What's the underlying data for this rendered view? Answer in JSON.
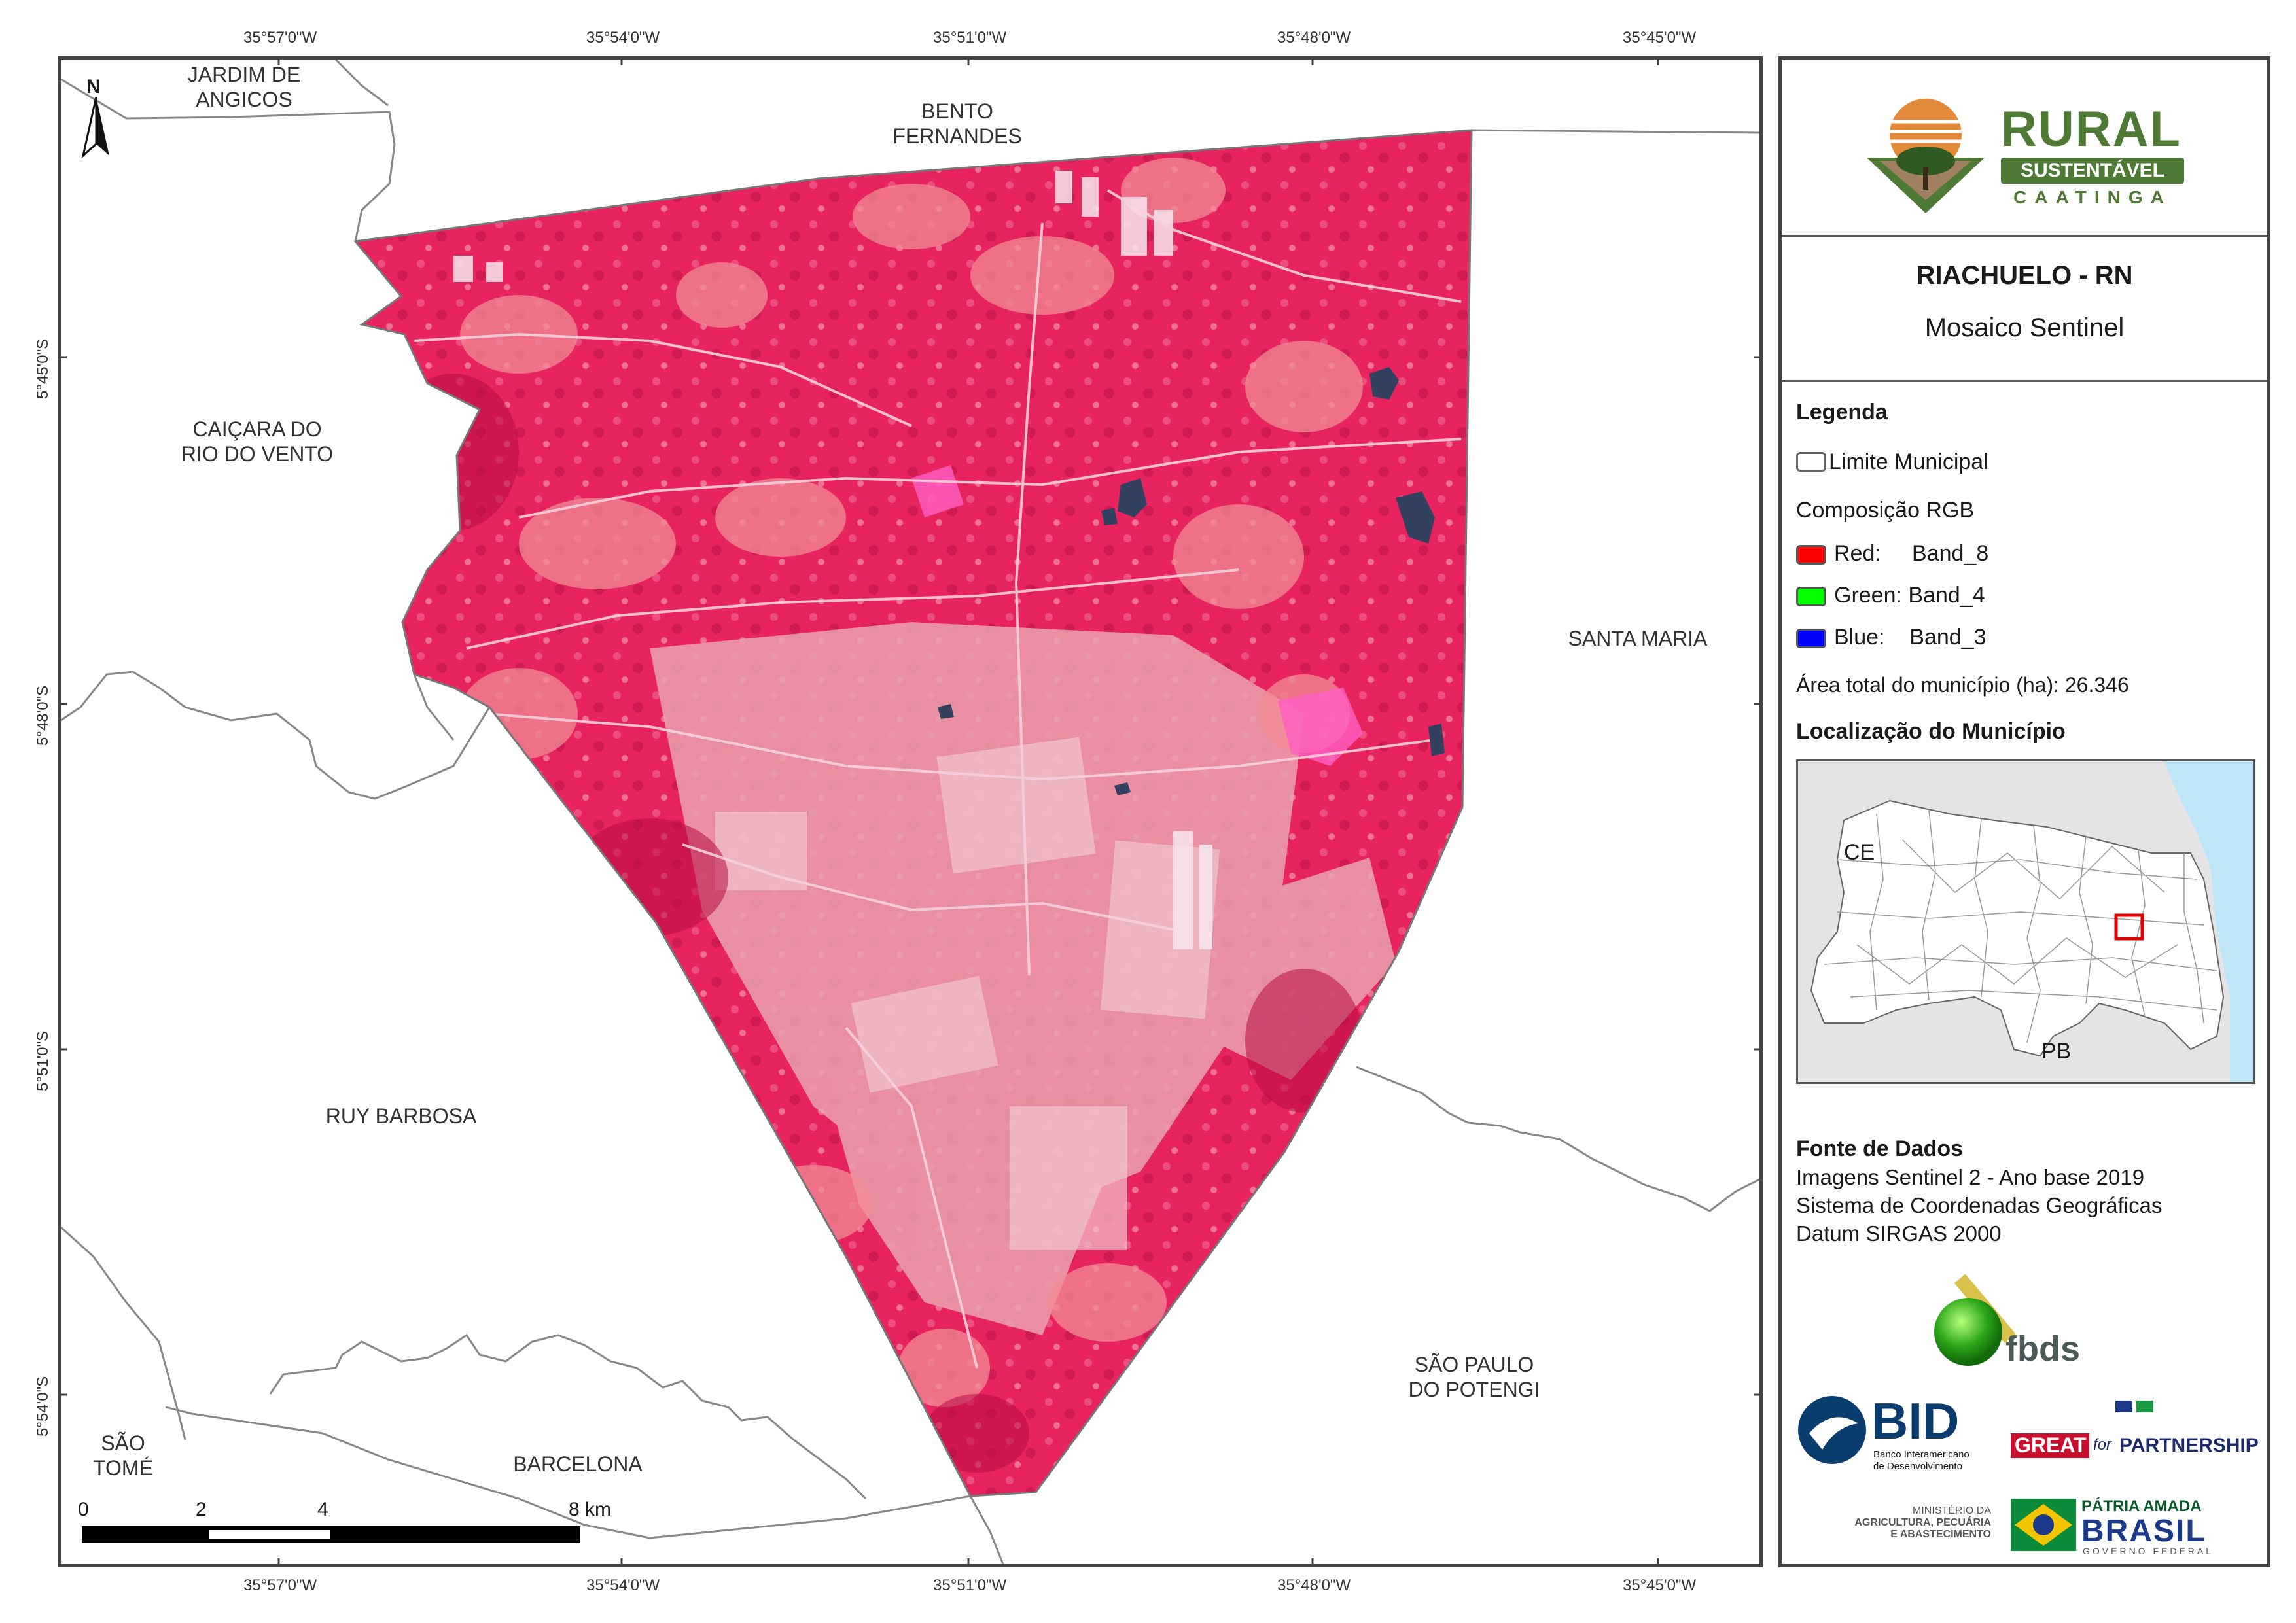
{
  "graticule": {
    "lon": [
      "35°57'0\"W",
      "35°54'0\"W",
      "35°51'0\"W",
      "35°48'0\"W",
      "35°45'0\"W"
    ],
    "lat": [
      "5°45'0\"S",
      "5°48'0\"S",
      "5°51'0\"S",
      "5°54'0\"S"
    ]
  },
  "places": {
    "jardim": "JARDIM DE\nANGICOS",
    "bento": "BENTO\nFERNANDES",
    "caicara": "CAIÇARA DO\nRIO DO VENTO",
    "santa_maria": "SANTA MARIA",
    "ruy_barbosa": "RUY BARBOSA",
    "sao_paulo": "SÃO PAULO\nDO POTENGI",
    "sao_tome": "SÃO\nTOMÉ",
    "barcelona": "BARCELONA"
  },
  "north_arrow": "N",
  "scale": {
    "labels": [
      "0",
      "2",
      "4",
      "8 km"
    ]
  },
  "panel": {
    "logo": {
      "word": "RURAL",
      "band": "SUSTENTÁVEL",
      "sub": "CAATINGA"
    },
    "title": "RIACHUELO - RN",
    "subtitle": "Mosaico Sentinel",
    "legend_title": "Legenda",
    "limit_label": "Limite Municipal",
    "composition": "Composição RGB",
    "bands": [
      {
        "label": "Red:     Band_8",
        "color": "#ff0000"
      },
      {
        "label": "Green: Band_4",
        "color": "#00ff00"
      },
      {
        "label": "Blue:    Band_3",
        "color": "#0000ff"
      }
    ],
    "area": "Área total do município (ha): 26.346",
    "location_title": "Localização do Município",
    "inset": {
      "ce": "CE",
      "pb": "PB"
    },
    "sources_title": "Fonte de Dados",
    "sources": [
      "Imagens Sentinel 2 - Ano base 2019",
      "Sistema de Coordenadas Geográficas",
      "Datum SIRGAS 2000"
    ],
    "logos": {
      "fbds": "fbds",
      "bid": "BID",
      "bid_sub1": "Banco Interamericano",
      "bid_sub2": "de Desenvolvimento",
      "great": "GREAT",
      "great_for": "for",
      "partnership": "PARTNERSHIP",
      "ministerio1": "MINISTÉRIO DA",
      "ministerio2": "AGRICULTURA, PECUÁRIA",
      "ministerio3": "E ABASTECIMENTO",
      "patria": "PÁTRIA AMADA",
      "brasil": "BRASIL",
      "gov": "GOVERNO FEDERAL"
    }
  },
  "colors": {
    "vegetation": "#e8245e",
    "vegetation_dark": "#c81248",
    "bare": "#e9a2ad",
    "water": "#334060",
    "sea": "#bfe6f7",
    "neighbor_land": "#e4e4e4"
  }
}
